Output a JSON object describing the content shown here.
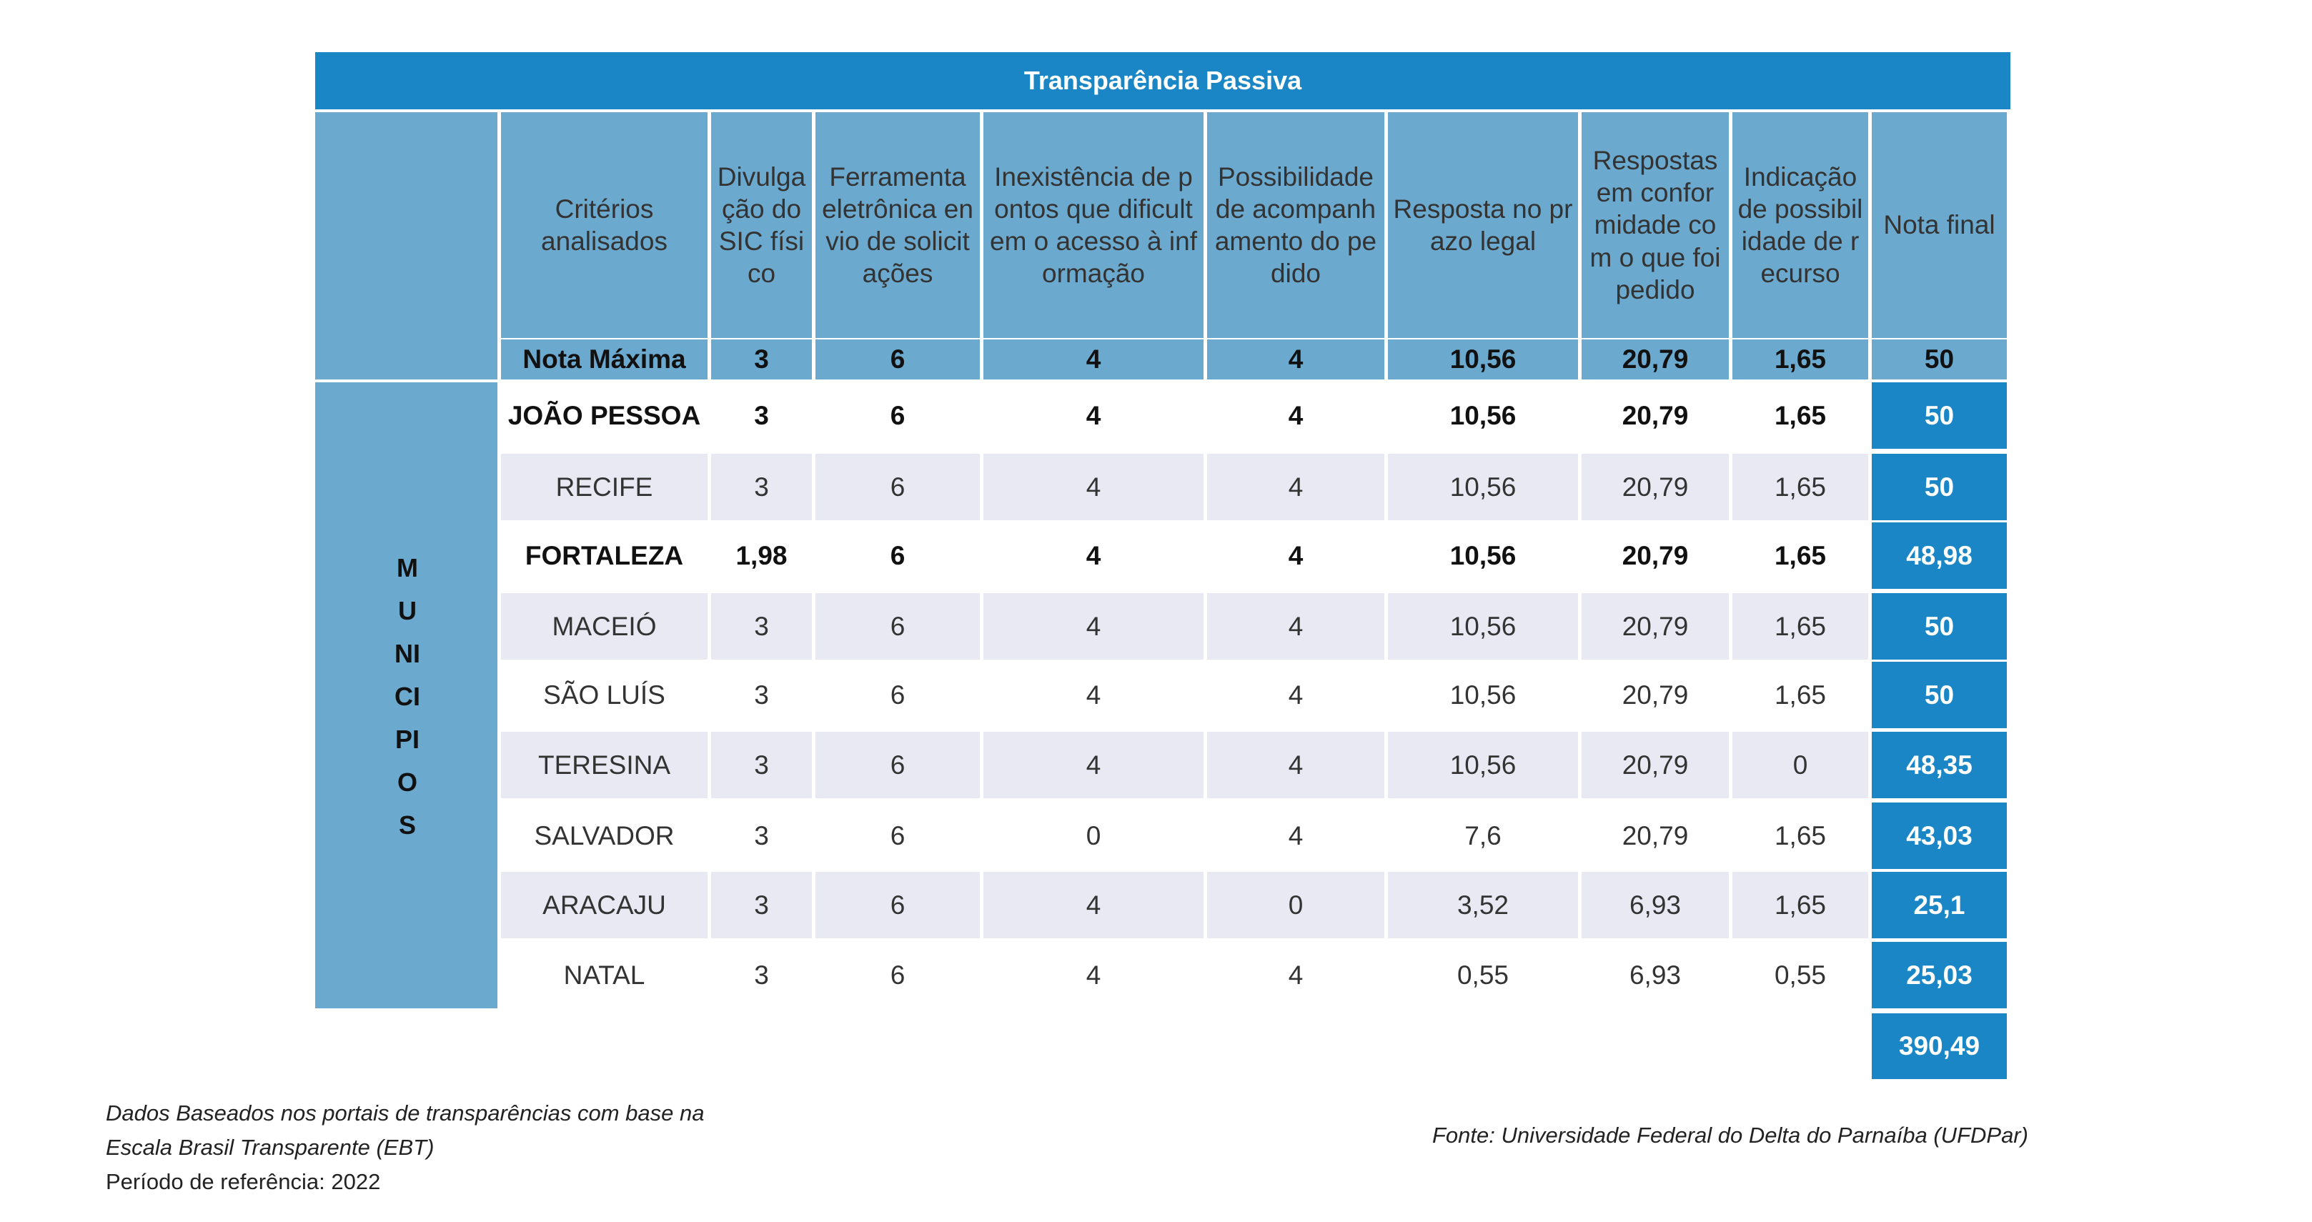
{
  "title": "Transparência Passiva",
  "side_label": "MUNICIPIOS",
  "header": {
    "criteria": "Critérios analisados",
    "columns": [
      "Divulgação do SIC físico",
      "Ferramenta eletrônica envio de solicitações",
      "Inexistência de pontos que dificultem o acesso à informação",
      "Possibilidade de acompanhamento do pedido",
      "Resposta no prazo legal",
      "Respostas em conformidade com o que foi pedido",
      "Indicação de possibilidade de recurso",
      "Nota final"
    ]
  },
  "max_row": {
    "label": "Nota Máxima",
    "values": [
      "3",
      "6",
      "4",
      "4",
      "10,56",
      "20,79",
      "1,65",
      "50"
    ]
  },
  "rows": [
    {
      "city": "JOÃO PESSOA",
      "values": [
        "3",
        "6",
        "4",
        "4",
        "10,56",
        "20,79",
        "1,65"
      ],
      "final": "50"
    },
    {
      "city": "RECIFE",
      "values": [
        "3",
        "6",
        "4",
        "4",
        "10,56",
        "20,79",
        "1,65"
      ],
      "final": "50"
    },
    {
      "city": "FORTALEZA",
      "values": [
        "1,98",
        "6",
        "4",
        "4",
        "10,56",
        "20,79",
        "1,65"
      ],
      "final": "48,98"
    },
    {
      "city": "MACEIÓ",
      "values": [
        "3",
        "6",
        "4",
        "4",
        "10,56",
        "20,79",
        "1,65"
      ],
      "final": "50"
    },
    {
      "city": "SÃO LUÍS",
      "values": [
        "3",
        "6",
        "4",
        "4",
        "10,56",
        "20,79",
        "1,65"
      ],
      "final": "50"
    },
    {
      "city": "TERESINA",
      "values": [
        "3",
        "6",
        "4",
        "4",
        "10,56",
        "20,79",
        "0"
      ],
      "final": "48,35"
    },
    {
      "city": "SALVADOR",
      "values": [
        "3",
        "6",
        "0",
        "4",
        "7,6",
        "20,79",
        "1,65"
      ],
      "final": "43,03"
    },
    {
      "city": "ARACAJU",
      "values": [
        "3",
        "6",
        "4",
        "0",
        "3,52",
        "6,93",
        "1,65"
      ],
      "final": "25,1"
    },
    {
      "city": "NATAL",
      "values": [
        "3",
        "6",
        "4",
        "4",
        "0,55",
        "6,93",
        "0,55"
      ],
      "final": "25,03"
    }
  ],
  "total": "390,49",
  "footnote": {
    "line1": "Dados Baseados nos portais de transparências com base na",
    "line2": "Escala Brasil Transparente (EBT)",
    "line3": "Período de referência: 2022",
    "source": "Fonte: Universidade Federal do Delta do Parnaíba (UFDPar)"
  },
  "colors": {
    "accent": "#1a86c6",
    "header_bg": "#6ba9cf",
    "alt_row": "#e8e9f3"
  }
}
